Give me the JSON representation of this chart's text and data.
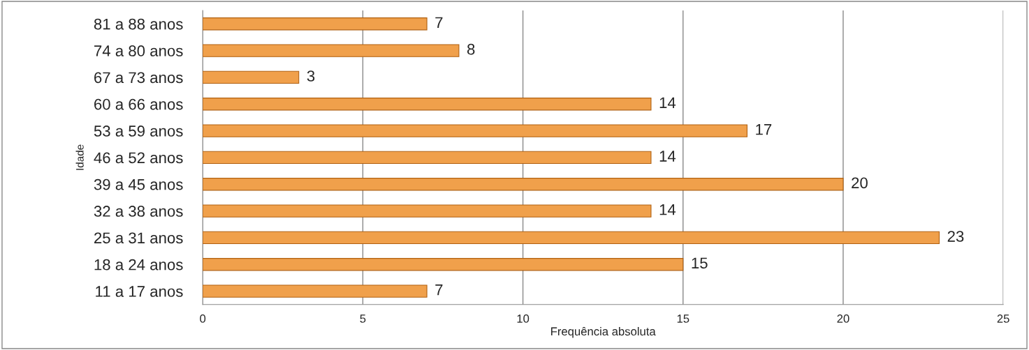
{
  "chart_data": {
    "type": "bar",
    "orientation": "horizontal",
    "xlabel": "Frequência absoluta",
    "ylabel": "Idade",
    "categories": [
      "81 a 88 anos",
      "74 a 80 anos",
      "67 a 73 anos",
      "60 a 66 anos",
      "53 a 59 anos",
      "46 a 52 anos",
      "39 a 45 anos",
      "32 a 38 anos",
      "25 a 31 anos",
      "18 a 24 anos",
      "11 a 17 anos"
    ],
    "values": [
      7,
      8,
      3,
      14,
      17,
      14,
      20,
      14,
      23,
      15,
      7
    ],
    "color": "#f0a04b",
    "xlim": [
      0,
      25
    ],
    "xticks": [
      0,
      5,
      10,
      15,
      20,
      25
    ],
    "grid": "x",
    "data_labels": true,
    "legend": false
  }
}
